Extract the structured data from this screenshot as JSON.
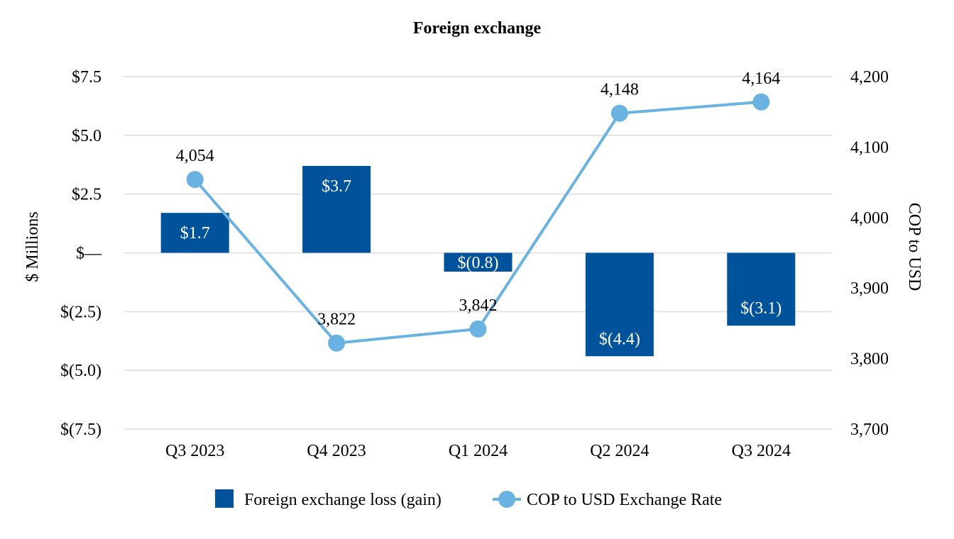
{
  "chart_data": {
    "type": "bar+line",
    "title": "Foreign exchange",
    "categories": [
      "Q3 2023",
      "Q4 2023",
      "Q1 2024",
      "Q2 2024",
      "Q3 2024"
    ],
    "series": [
      {
        "name": "Foreign exchange loss (gain)",
        "type": "bar",
        "axis": "left",
        "values": [
          1.7,
          3.7,
          -0.8,
          -4.4,
          -3.1
        ],
        "labels": [
          "$1.7",
          "$3.7",
          "$(0.8)",
          "$(4.4)",
          "$(3.1)"
        ],
        "color": "#00529b"
      },
      {
        "name": "COP to USD Exchange Rate",
        "type": "line",
        "axis": "right",
        "values": [
          4054,
          3822,
          3842,
          4148,
          4164
        ],
        "labels": [
          "4,054",
          "3,822",
          "3,842",
          "4,148",
          "4,164"
        ],
        "color": "#6ab2e2"
      }
    ],
    "y_left": {
      "label": "$ Millions",
      "lim": [
        -7.5,
        7.5
      ],
      "ticks": [
        7.5,
        5.0,
        2.5,
        0,
        -2.5,
        -5.0,
        -7.5
      ],
      "tick_labels": [
        "$7.5",
        "$5.0",
        "$2.5",
        "$—",
        "$(2.5)",
        "$(5.0)",
        "$(7.5)"
      ]
    },
    "y_right": {
      "label": "COP to USD",
      "lim": [
        3700,
        4200
      ],
      "ticks": [
        4200,
        4100,
        4000,
        3900,
        3800,
        3700
      ],
      "tick_labels": [
        "4,200",
        "4,100",
        "4,000",
        "3,900",
        "3,800",
        "3,700"
      ]
    },
    "grid": true,
    "legend": {
      "position": "bottom"
    }
  }
}
